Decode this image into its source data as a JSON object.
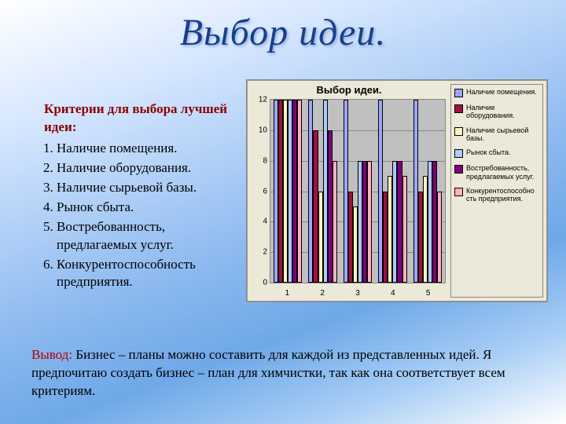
{
  "title": "Выбор идеи.",
  "criteria": {
    "heading": "Критерии для выбора лучшей идеи:",
    "items": [
      "Наличие помещения.",
      "Наличие оборудования.",
      "Наличие сырьевой базы.",
      "Рынок сбыта.",
      "Востребованность, предлагаемых  услуг.",
      "Конкурентоспособность предприятия."
    ]
  },
  "chart": {
    "type": "bar",
    "title": "Выбор идеи.",
    "title_fontsize": 13,
    "background_color": "#ece9d8",
    "plot_background": "#c0c0c0",
    "grid_color": "#888888",
    "axis_fontsize": 10,
    "ylim": [
      0,
      12
    ],
    "ytick_step": 2,
    "categories": [
      "1",
      "2",
      "3",
      "4",
      "5"
    ],
    "group_gap": 0.18,
    "bar_gap": 0.0,
    "series": [
      {
        "name": "Наличие помещения.",
        "color": "#9da7ff",
        "values": [
          12,
          12,
          12,
          12,
          12
        ]
      },
      {
        "name": "Наличие оборудования.",
        "color": "#a01040",
        "values": [
          12,
          10,
          6,
          6,
          6
        ]
      },
      {
        "name": "Наличие сырьевой базы.",
        "color": "#fff4c0",
        "values": [
          12,
          6,
          5,
          7,
          7
        ]
      },
      {
        "name": "Рынок сбыта.",
        "color": "#b0c8ff",
        "values": [
          12,
          12,
          8,
          8,
          8
        ]
      },
      {
        "name": "Востребованность, предлагаемых услуг.",
        "color": "#800080",
        "values": [
          12,
          10,
          8,
          8,
          8
        ]
      },
      {
        "name": "Конкурентоспособно сть предприятия.",
        "color": "#ffb0c0",
        "values": [
          12,
          8,
          8,
          7,
          6
        ]
      }
    ]
  },
  "conclusion": {
    "lead": "Вывод:",
    "body": " Бизнес – планы можно составить для каждой из представленных идей. Я предпочитаю создать бизнес – план для химчистки, так как она соответствует всем критериям."
  }
}
